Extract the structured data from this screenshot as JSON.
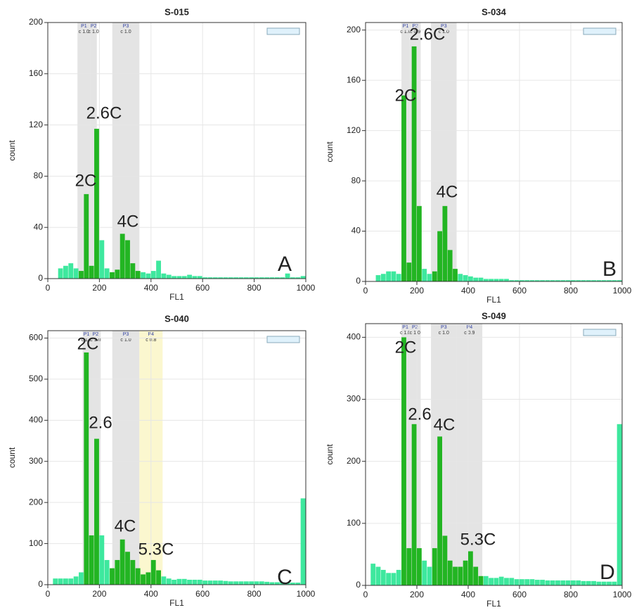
{
  "chart_data": [
    {
      "type": "histogram",
      "title": "S-015",
      "x_label": "FL1",
      "y_label": "count",
      "panel_label": "A",
      "color": "#3ee89e",
      "gate_color": "#22b522",
      "grid": true,
      "xlim": [
        0,
        1000
      ],
      "xticks": [
        0,
        200,
        400,
        600,
        800,
        1000
      ],
      "ylim": [
        0,
        200
      ],
      "yticks": [
        0,
        40,
        80,
        120,
        160,
        200
      ],
      "bins": [
        0,
        20,
        40,
        60,
        80,
        100,
        120,
        140,
        160,
        180,
        200,
        220,
        240,
        260,
        280,
        300,
        320,
        340,
        360,
        380,
        400,
        420,
        440,
        460,
        480,
        500,
        520,
        540,
        560,
        580,
        600,
        620,
        640,
        660,
        680,
        700,
        720,
        740,
        760,
        780,
        800,
        820,
        840,
        860,
        880,
        900,
        920,
        940,
        960,
        980,
        1000
      ],
      "values": [
        0,
        0,
        8,
        10,
        12,
        8,
        6,
        66,
        10,
        117,
        30,
        8,
        5,
        7,
        35,
        30,
        12,
        6,
        5,
        4,
        6,
        14,
        4,
        3,
        2,
        2,
        2,
        3,
        2,
        2,
        1,
        1,
        1,
        1,
        1,
        1,
        1,
        1,
        1,
        1,
        1,
        1,
        1,
        1,
        1,
        1,
        4,
        1,
        1,
        2
      ],
      "gates": [
        {
          "name": "P1",
          "label": "c 1.0",
          "range": [
            115,
            165
          ],
          "color": "#e4e4e4"
        },
        {
          "name": "P2",
          "label": "c 1.0",
          "range": [
            165,
            190
          ],
          "color": "#e4e4e4"
        },
        {
          "name": "P3",
          "label": "c 1.0",
          "range": [
            250,
            355
          ],
          "color": "#e4e4e4"
        }
      ],
      "annotations": [
        "2C",
        "2.6C",
        "4C"
      ]
    },
    {
      "type": "histogram",
      "title": "S-034",
      "x_label": "FL1",
      "y_label": "count",
      "panel_label": "B",
      "color": "#3ee89e",
      "gate_color": "#22b522",
      "grid": true,
      "xlim": [
        0,
        1000
      ],
      "xticks": [
        0,
        200,
        400,
        600,
        800,
        1000
      ],
      "ylim": [
        0,
        206
      ],
      "yticks": [
        0,
        40,
        80,
        120,
        160,
        200
      ],
      "bins": [
        0,
        20,
        40,
        60,
        80,
        100,
        120,
        140,
        160,
        180,
        200,
        220,
        240,
        260,
        280,
        300,
        320,
        340,
        360,
        380,
        400,
        420,
        440,
        460,
        480,
        500,
        520,
        540,
        560,
        580,
        600,
        620,
        640,
        660,
        680,
        700,
        720,
        740,
        760,
        780,
        800,
        820,
        840,
        860,
        880,
        900,
        920,
        940,
        960,
        980,
        1000
      ],
      "values": [
        0,
        0,
        5,
        6,
        8,
        8,
        6,
        148,
        15,
        187,
        60,
        10,
        6,
        8,
        40,
        60,
        25,
        10,
        6,
        5,
        4,
        3,
        3,
        2,
        2,
        2,
        2,
        2,
        1,
        1,
        1,
        1,
        1,
        1,
        1,
        1,
        1,
        1,
        1,
        1,
        1,
        1,
        1,
        1,
        1,
        1,
        1,
        1,
        1,
        1
      ],
      "gates": [
        {
          "name": "P1",
          "label": "c 1.0",
          "range": [
            140,
            172
          ],
          "color": "#e4e4e4"
        },
        {
          "name": "P2",
          "label": "c 0.9",
          "range": [
            172,
            215
          ],
          "color": "#e4e4e4"
        },
        {
          "name": "P3",
          "label": "c 1.0",
          "range": [
            255,
            355
          ],
          "color": "#e4e4e4"
        }
      ],
      "annotations": [
        "2C",
        "2.6C",
        "4C"
      ]
    },
    {
      "type": "histogram",
      "title": "S-040",
      "x_label": "FL1",
      "y_label": "count",
      "panel_label": "C",
      "color": "#3ee89e",
      "gate_color": "#22b522",
      "grid": true,
      "xlim": [
        0,
        1000
      ],
      "xticks": [
        0,
        200,
        400,
        600,
        800,
        1000
      ],
      "ylim": [
        0,
        618
      ],
      "yticks": [
        0,
        100,
        200,
        300,
        400,
        500,
        600
      ],
      "bins": [
        0,
        20,
        40,
        60,
        80,
        100,
        120,
        140,
        160,
        180,
        200,
        220,
        240,
        260,
        280,
        300,
        320,
        340,
        360,
        380,
        400,
        420,
        440,
        460,
        480,
        500,
        520,
        540,
        560,
        580,
        600,
        620,
        640,
        660,
        680,
        700,
        720,
        740,
        760,
        780,
        800,
        820,
        840,
        860,
        880,
        900,
        920,
        940,
        960,
        980,
        1000
      ],
      "values": [
        0,
        15,
        15,
        15,
        15,
        20,
        30,
        565,
        120,
        355,
        120,
        60,
        40,
        60,
        110,
        80,
        60,
        40,
        25,
        30,
        60,
        35,
        20,
        15,
        12,
        14,
        14,
        12,
        12,
        12,
        10,
        10,
        10,
        10,
        9,
        8,
        8,
        8,
        8,
        8,
        8,
        8,
        7,
        6,
        6,
        6,
        5,
        5,
        5,
        210
      ],
      "gates": [
        {
          "name": "P1",
          "label": "c 1.0",
          "range": [
            135,
            165
          ],
          "color": "#e4e4e4"
        },
        {
          "name": "P2",
          "label": "c 1.0",
          "range": [
            165,
            205
          ],
          "color": "#e4e4e4"
        },
        {
          "name": "P3",
          "label": "c 1.0",
          "range": [
            250,
            355
          ],
          "color": "#e4e4e4"
        },
        {
          "name": "P4",
          "label": "c 0.8",
          "range": [
            355,
            445
          ],
          "color": "#fbf7cf"
        }
      ],
      "annotations": [
        "2C",
        "2.6",
        "4C",
        "5.3C"
      ]
    },
    {
      "type": "histogram",
      "title": "S-049",
      "x_label": "FL1",
      "y_label": "count",
      "panel_label": "D",
      "color": "#3ee89e",
      "gate_color": "#22b522",
      "grid": true,
      "xlim": [
        0,
        1000
      ],
      "xticks": [
        0,
        200,
        400,
        600,
        800,
        1000
      ],
      "ylim": [
        0,
        422
      ],
      "yticks": [
        0,
        100,
        200,
        300,
        400
      ],
      "bins": [
        0,
        20,
        40,
        60,
        80,
        100,
        120,
        140,
        160,
        180,
        200,
        220,
        240,
        260,
        280,
        300,
        320,
        340,
        360,
        380,
        400,
        420,
        440,
        460,
        480,
        500,
        520,
        540,
        560,
        580,
        600,
        620,
        640,
        660,
        680,
        700,
        720,
        740,
        760,
        780,
        800,
        820,
        840,
        860,
        880,
        900,
        920,
        940,
        960,
        980,
        1000
      ],
      "values": [
        0,
        35,
        30,
        25,
        20,
        20,
        25,
        400,
        60,
        260,
        60,
        40,
        30,
        60,
        240,
        80,
        40,
        30,
        30,
        40,
        55,
        30,
        15,
        15,
        12,
        12,
        14,
        12,
        12,
        10,
        10,
        10,
        10,
        9,
        9,
        8,
        8,
        8,
        8,
        8,
        8,
        8,
        7,
        7,
        7,
        6,
        6,
        6,
        6,
        260
      ],
      "gates": [
        {
          "name": "P1",
          "label": "c 1.0",
          "range": [
            140,
            170
          ],
          "color": "#e4e4e4"
        },
        {
          "name": "P2",
          "label": "c 1.0",
          "range": [
            170,
            215
          ],
          "color": "#e4e4e4"
        },
        {
          "name": "P3",
          "label": "c 1.0",
          "range": [
            255,
            355
          ],
          "color": "#e4e4e4"
        },
        {
          "name": "P4",
          "label": "c 0.9",
          "range": [
            355,
            455
          ],
          "color": "#e4e4e4"
        }
      ],
      "annotations": [
        "2C",
        "2.6",
        "4C",
        "5.3C"
      ]
    }
  ]
}
